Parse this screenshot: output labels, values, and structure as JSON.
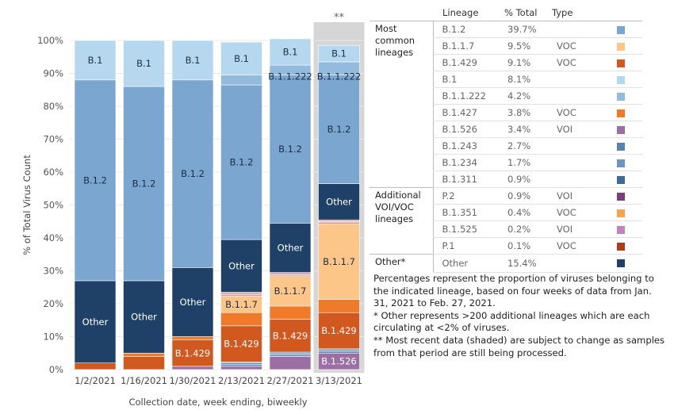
{
  "chart_data": {
    "type": "bar",
    "stacked": true,
    "ylabel": "% of Total Virus Count",
    "xlabel": "Collection date, week ending, biweekly",
    "ylim": [
      0,
      100
    ],
    "yticks": [
      "0%",
      "10%",
      "20%",
      "30%",
      "40%",
      "50%",
      "60%",
      "70%",
      "80%",
      "90%",
      "100%"
    ],
    "categories": [
      "1/2/2021",
      "1/16/2021",
      "1/30/2021",
      "2/13/2021",
      "2/27/2021",
      "3/13/2021"
    ],
    "shaded_column_marker": "**",
    "series_order": [
      "B.1.526",
      "B.1.243",
      "B.1.234",
      "B.1.311",
      "B.1.429",
      "B.1.427",
      "B.1.1.7",
      "P.2",
      "B.1.351",
      "B.1.525",
      "P.1",
      "Other",
      "B.1.2",
      "B.1.1.222",
      "B.1"
    ],
    "series": [
      {
        "name": "B.1.526",
        "values": [
          0,
          0,
          1,
          1,
          4,
          5
        ]
      },
      {
        "name": "B.1.243",
        "values": [
          0,
          0,
          0,
          0.5,
          0.5,
          0.5
        ]
      },
      {
        "name": "B.1.234",
        "values": [
          0,
          0,
          0,
          0.5,
          0.5,
          0.5
        ]
      },
      {
        "name": "B.1.311",
        "values": [
          0,
          0,
          0,
          0.3,
          0.3,
          0.3
        ]
      },
      {
        "name": "B.1.429",
        "values": [
          2,
          4,
          8,
          11,
          10,
          11
        ]
      },
      {
        "name": "B.1.427",
        "values": [
          0,
          1,
          1,
          4,
          4,
          4
        ]
      },
      {
        "name": "B.1.1.7",
        "values": [
          0,
          0,
          0,
          5,
          9,
          23
        ]
      },
      {
        "name": "P.2",
        "values": [
          0,
          0,
          0,
          0.3,
          0.3,
          0.3
        ]
      },
      {
        "name": "B.1.351",
        "values": [
          0,
          0,
          0,
          0.3,
          0.3,
          0.3
        ]
      },
      {
        "name": "B.1.525",
        "values": [
          0,
          0,
          0,
          0.3,
          0.3,
          0.3
        ]
      },
      {
        "name": "P.1",
        "values": [
          0,
          0,
          0,
          0.3,
          0.3,
          0.3
        ]
      },
      {
        "name": "Other",
        "values": [
          25,
          22,
          21,
          16,
          15,
          11
        ]
      },
      {
        "name": "B.1.2",
        "values": [
          61,
          59,
          57,
          47,
          45,
          33
        ]
      },
      {
        "name": "B.1.1.222",
        "values": [
          0,
          0,
          0,
          3,
          3,
          4
        ]
      },
      {
        "name": "B.1",
        "values": [
          12,
          14,
          12,
          10,
          8,
          5
        ]
      }
    ],
    "colors": {
      "B.1.2": "#7aa6d0",
      "B.1.1.7": "#fcc689",
      "B.1.429": "#d1591f",
      "B.1": "#b6d8ef",
      "B.1.1.222": "#93bbdd",
      "B.1.427": "#ee7a2a",
      "B.1.526": "#9b6fa3",
      "B.1.243": "#5a82ad",
      "B.1.234": "#6d94c2",
      "B.1.311": "#3e6b97",
      "P.2": "#7d3f7c",
      "B.1.351": "#f5a54e",
      "B.1.525": "#bf84bf",
      "P.1": "#a93d1e",
      "Other": "#1f4168"
    },
    "bar_labels": [
      {
        "bar": 0,
        "series": "B.1",
        "text": "B.1"
      },
      {
        "bar": 0,
        "series": "B.1.2",
        "text": "B.1.2"
      },
      {
        "bar": 0,
        "series": "Other",
        "text": "Other"
      },
      {
        "bar": 1,
        "series": "B.1",
        "text": "B.1"
      },
      {
        "bar": 1,
        "series": "B.1.2",
        "text": "B.1.2"
      },
      {
        "bar": 1,
        "series": "Other",
        "text": "Other"
      },
      {
        "bar": 2,
        "series": "B.1",
        "text": "B.1"
      },
      {
        "bar": 2,
        "series": "B.1.2",
        "text": "B.1.2"
      },
      {
        "bar": 2,
        "series": "Other",
        "text": "Other"
      },
      {
        "bar": 2,
        "series": "B.1.429",
        "text": "B.1.429"
      },
      {
        "bar": 3,
        "series": "B.1",
        "text": "B.1"
      },
      {
        "bar": 3,
        "series": "B.1.2",
        "text": "B.1.2"
      },
      {
        "bar": 3,
        "series": "Other",
        "text": "Other"
      },
      {
        "bar": 3,
        "series": "B.1.1.7",
        "text": "B.1.1.7"
      },
      {
        "bar": 3,
        "series": "B.1.429",
        "text": "B.1.429"
      },
      {
        "bar": 4,
        "series": "B.1",
        "text": "B.1"
      },
      {
        "bar": 4,
        "series": "B.1.1.222",
        "text": "B.1.1.222"
      },
      {
        "bar": 4,
        "series": "B.1.2",
        "text": "B.1.2"
      },
      {
        "bar": 4,
        "series": "Other",
        "text": "Other"
      },
      {
        "bar": 4,
        "series": "B.1.1.7",
        "text": "B.1.1.7"
      },
      {
        "bar": 4,
        "series": "B.1.429",
        "text": "B.1.429"
      },
      {
        "bar": 5,
        "series": "B.1",
        "text": "B.1"
      },
      {
        "bar": 5,
        "series": "B.1.1.222",
        "text": "B.1.1.222"
      },
      {
        "bar": 5,
        "series": "B.1.2",
        "text": "B.1.2"
      },
      {
        "bar": 5,
        "series": "Other",
        "text": "Other"
      },
      {
        "bar": 5,
        "series": "B.1.1.7",
        "text": "B.1.1.7"
      },
      {
        "bar": 5,
        "series": "B.1.429",
        "text": "B.1.429"
      },
      {
        "bar": 5,
        "series": "B.1.526",
        "text": "B.1.526"
      }
    ]
  },
  "table": {
    "headers": {
      "lineage": "Lineage",
      "pct": "% Total",
      "type": "Type"
    },
    "groups": [
      {
        "name": "Most common lineages",
        "rows": [
          {
            "lineage": "B.1.2",
            "pct": "39.7%",
            "type": "",
            "color": "#7aa6d0"
          },
          {
            "lineage": "B.1.1.7",
            "pct": "9.5%",
            "type": "VOC",
            "color": "#fcc689"
          },
          {
            "lineage": "B.1.429",
            "pct": "9.1%",
            "type": "VOC",
            "color": "#d1591f"
          },
          {
            "lineage": "B.1",
            "pct": "8.1%",
            "type": "",
            "color": "#b6d8ef"
          },
          {
            "lineage": "B.1.1.222",
            "pct": "4.2%",
            "type": "",
            "color": "#93bbdd"
          },
          {
            "lineage": "B.1.427",
            "pct": "3.8%",
            "type": "VOC",
            "color": "#ee7a2a"
          },
          {
            "lineage": "B.1.526",
            "pct": "3.4%",
            "type": "VOI",
            "color": "#9b6fa3"
          },
          {
            "lineage": "B.1.243",
            "pct": "2.7%",
            "type": "",
            "color": "#5a82ad"
          },
          {
            "lineage": "B.1.234",
            "pct": "1.7%",
            "type": "",
            "color": "#6d94c2"
          },
          {
            "lineage": "B.1.311",
            "pct": "0.9%",
            "type": "",
            "color": "#3e6b97"
          }
        ]
      },
      {
        "name": "Additional VOI/VOC lineages",
        "rows": [
          {
            "lineage": "P.2",
            "pct": "0.9%",
            "type": "VOI",
            "color": "#7d3f7c"
          },
          {
            "lineage": "B.1.351",
            "pct": "0.4%",
            "type": "VOC",
            "color": "#f5a54e"
          },
          {
            "lineage": "B.1.525",
            "pct": "0.2%",
            "type": "VOI",
            "color": "#bf84bf"
          },
          {
            "lineage": "P.1",
            "pct": "0.1%",
            "type": "VOC",
            "color": "#a93d1e"
          }
        ]
      },
      {
        "name": "Other*",
        "rows": [
          {
            "lineage": "Other",
            "pct": "15.4%",
            "type": "",
            "color": "#1f4168"
          }
        ]
      }
    ]
  },
  "notes": {
    "line1": "Percentages represent the proportion of viruses belonging to the indicated lineage, based on four weeks of data from Jan. 31, 2021 to Feb. 27, 2021.",
    "line2": "* Other represents >200 additional lineages which are each circulating at <2% of viruses.",
    "line3": "** Most recent data (shaded) are subject to change as samples from that period are still being processed."
  }
}
